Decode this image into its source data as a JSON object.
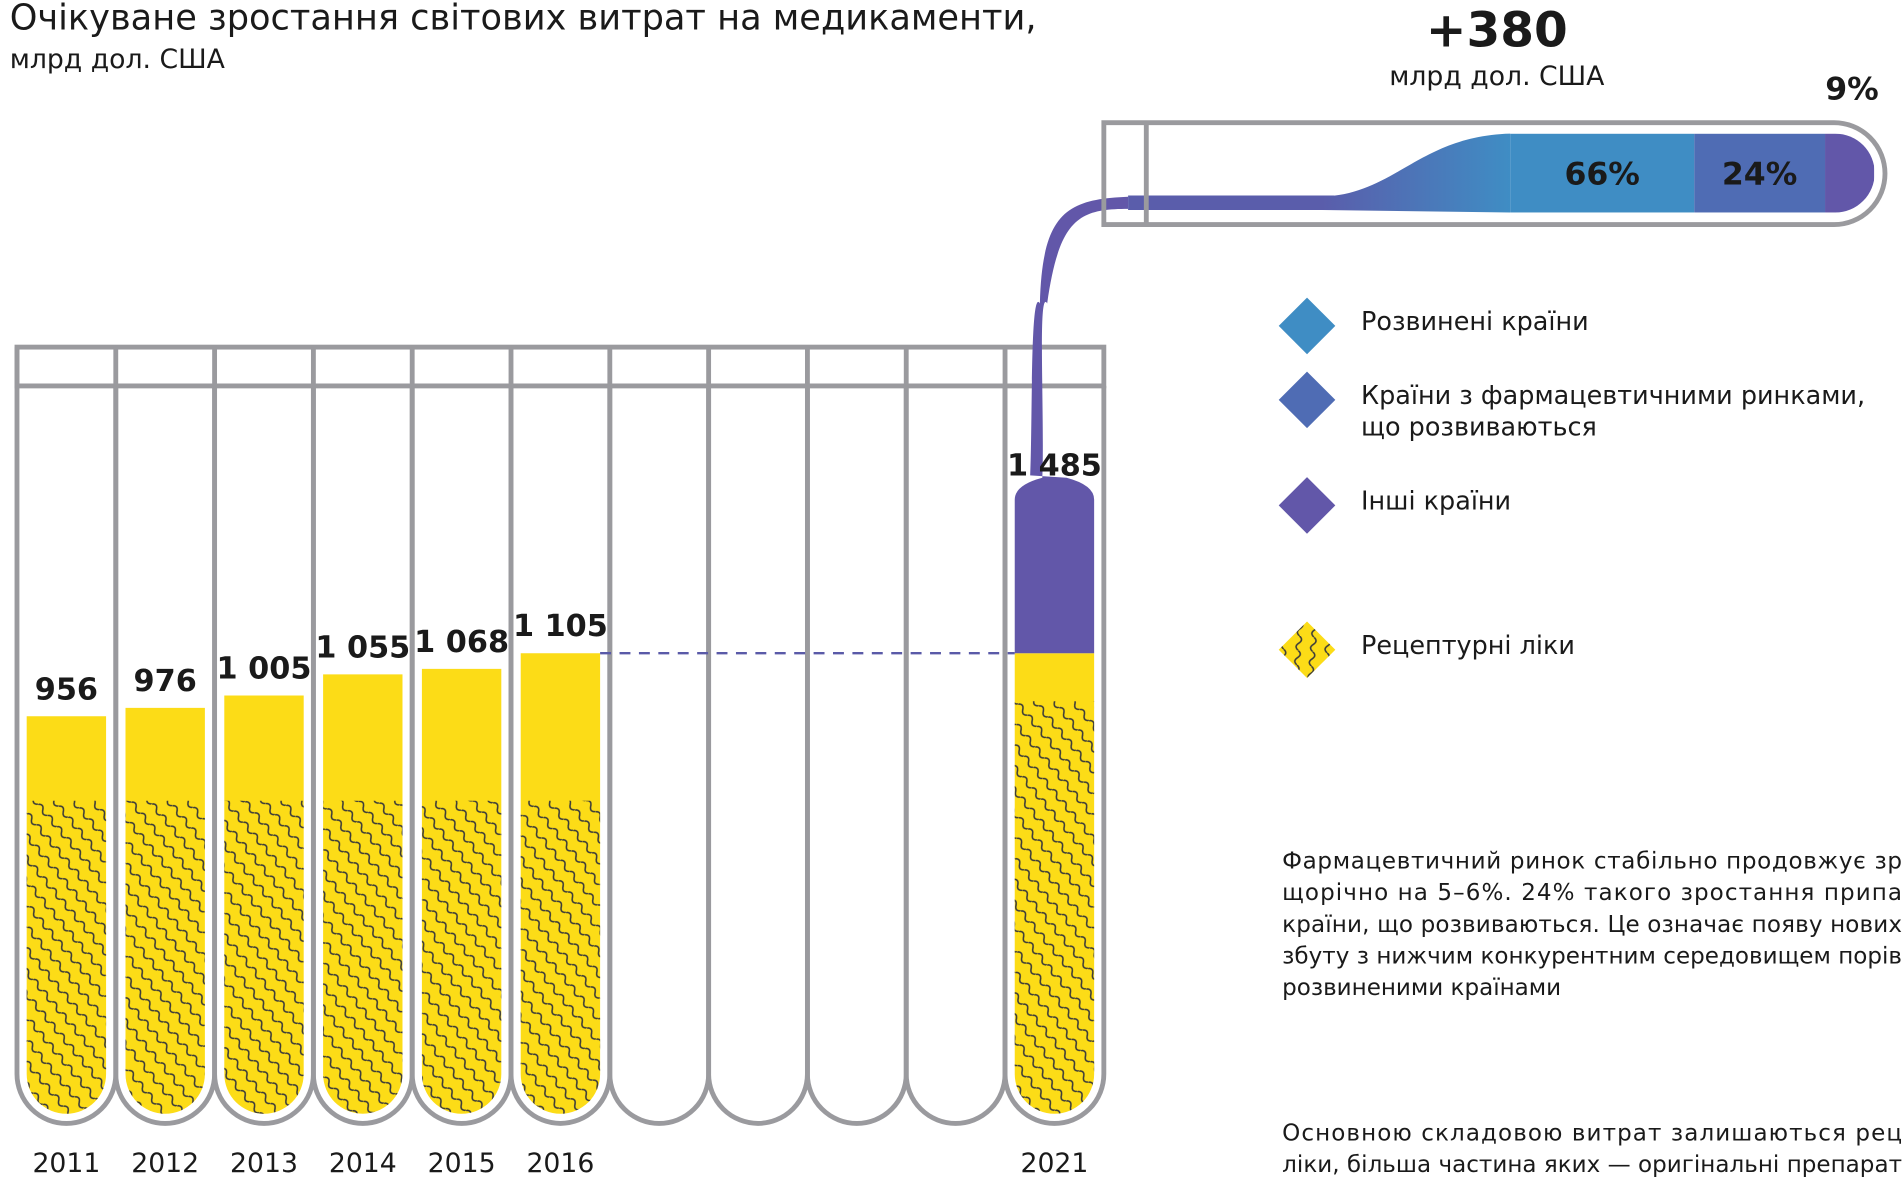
{
  "chart_data": {
    "type": "tube-bar",
    "title": "Очікуване зростання світових витрат на медикаменти,",
    "subtitle": "млрд дол. США",
    "categories": [
      "2011",
      "2012",
      "2013",
      "2014",
      "2015",
      "2016",
      null,
      null,
      null,
      null,
      "2021"
    ],
    "values": [
      956,
      976,
      1005,
      1055,
      1068,
      1105,
      null,
      null,
      null,
      null,
      1485
    ],
    "value_labels": [
      "956",
      "976",
      "1 005",
      "1 055",
      "1 068",
      "1 105",
      null,
      null,
      null,
      null,
      "1 485"
    ],
    "color": "#fcdc17",
    "increase": {
      "value": 380,
      "label": "+380"
    },
    "increase_unit": "млрд дол. США",
    "series": [
      {
        "name": "Розвинені країни",
        "color": "#3f8dc4"
      },
      {
        "name": "Країни з фармацевтичними ринками, що розвиваються",
        "color": "#4f6cb4"
      },
      {
        "name": "Інші країни",
        "color": "#6257a9"
      }
    ],
    "shares": {
      "values": [
        66,
        24,
        9
      ],
      "value_labels": [
        "66%",
        "24%",
        "9%"
      ]
    },
    "prescription": {
      "name": "Рецептурні ліки",
      "color": "#fcdc17"
    },
    "paragraphs": [
      [
        "Фармацевтичний ринок стабільно продовжує зр",
        "щорічно на 5–6%. 24% такого зростання припа",
        "країни, що розвиваються. Це означає появу нових",
        "збуту з нижчим конкурентним середовищем порів",
        "розвиненими країнами"
      ],
      [
        "Основною складовою витрат залишаються рец",
        "ліки, більша частина яких — оригінальні препарат"
      ]
    ]
  }
}
